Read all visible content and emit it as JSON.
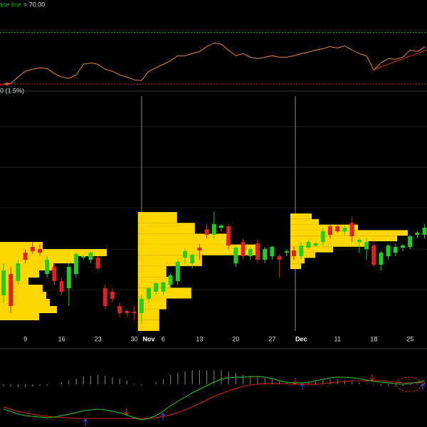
{
  "chart_data": [
    {
      "type": "line",
      "base_line_name": "ase line",
      "base_line": {
        "value": 70,
        "label": "= 70.00"
      },
      "lower_line": 30,
      "ylim": [
        29,
        95
      ],
      "color": "#e8873a",
      "base_color": "#22aa22",
      "lower_color": "#dd2222",
      "values": [
        30,
        30.5,
        35.5,
        40,
        41.5,
        42.6,
        42,
        38.2,
        35.5,
        34.4,
        37.1,
        45.3,
        46.4,
        45.3,
        41.5,
        39.9,
        37.1,
        35.5,
        33.3,
        32.7,
        39.9,
        42.6,
        45.3,
        48.1,
        51.9,
        51.9,
        53.6,
        55.2,
        59,
        61.8,
        60.7,
        56.3,
        51.9,
        53.6,
        50.8,
        49.7,
        50.8,
        51.9,
        50.8,
        50.8,
        51.9,
        53.6,
        54.7,
        56.3,
        57.4,
        59,
        57.9,
        59.6,
        56.3,
        53.6,
        51.9,
        41,
        46.4,
        49.7,
        49.2,
        50.8,
        56.3,
        55.2,
        58.5
      ]
    },
    {
      "type": "candlestick",
      "subtitle": "0 (1.5%)",
      "ylim": [
        0,
        335
      ],
      "up_color": "#22cc22",
      "down_color": "#dd2222",
      "profile_color": "#ffd700",
      "categories": [
        null,
        null,
        null,
        "9",
        null,
        null,
        null,
        null,
        "16",
        null,
        null,
        null,
        null,
        "23",
        null,
        null,
        null,
        null,
        "30",
        null,
        "Nov",
        null,
        "6",
        null,
        null,
        null,
        null,
        "13",
        null,
        null,
        null,
        null,
        "20",
        null,
        null,
        null,
        null,
        "27",
        null,
        null,
        null,
        "Dec",
        null,
        null,
        null,
        null,
        "11",
        null,
        null,
        null,
        null,
        "18",
        null,
        null,
        null,
        null,
        "25",
        null,
        null
      ],
      "open": [
        50,
        80,
        70,
        110,
        118,
        115,
        80,
        90,
        70,
        60,
        80,
        103,
        100,
        103,
        60,
        55,
        35,
        28,
        27,
        25,
        45,
        55,
        55,
        65,
        70,
        103,
        95,
        117,
        143,
        135,
        145,
        147,
        95,
        125,
        105,
        123,
        100,
        105,
        105,
        110,
        113,
        105,
        117,
        120,
        125,
        147,
        147,
        140,
        152,
        125,
        115,
        120,
        93,
        105,
        110,
        117,
        118,
        135,
        135
      ],
      "high": [
        95,
        90,
        100,
        115,
        125,
        122,
        105,
        95,
        75,
        95,
        110,
        107,
        112,
        105,
        65,
        60,
        40,
        30,
        35,
        50,
        62,
        68,
        70,
        80,
        100,
        115,
        108,
        122,
        150,
        167,
        150,
        150,
        120,
        130,
        118,
        128,
        118,
        120,
        108,
        115,
        118,
        125,
        128,
        125,
        145,
        150,
        150,
        148,
        160,
        130,
        130,
        125,
        112,
        122,
        122,
        122,
        135,
        140,
        150
      ],
      "low": [
        40,
        25,
        65,
        95,
        108,
        105,
        75,
        65,
        50,
        35,
        75,
        100,
        95,
        85,
        30,
        40,
        20,
        20,
        15,
        10,
        40,
        50,
        50,
        60,
        65,
        95,
        88,
        100,
        130,
        130,
        140,
        115,
        90,
        100,
        100,
        95,
        95,
        100,
        75,
        105,
        100,
        100,
        115,
        118,
        120,
        130,
        138,
        135,
        125,
        110,
        100,
        90,
        85,
        100,
        105,
        112,
        115,
        130,
        130
      ],
      "close": [
        85,
        35,
        95,
        100,
        112,
        110,
        100,
        70,
        55,
        90,
        108,
        105,
        110,
        88,
        35,
        45,
        25,
        25,
        25,
        45,
        60,
        67,
        68,
        78,
        97,
        112,
        107,
        113,
        135,
        150,
        148,
        120,
        117,
        105,
        115,
        100,
        115,
        118,
        100,
        112,
        105,
        120,
        125,
        123,
        140,
        135,
        140,
        145,
        133,
        128,
        125,
        93,
        110,
        120,
        118,
        120,
        133,
        138,
        145
      ],
      "profiles": [
        {
          "start": 0,
          "low": 15,
          "high": 125,
          "counts": [
            55,
            80,
            70,
            65,
            60,
            40,
            55,
            75,
            110,
            150,
            60
          ]
        },
        {
          "start": 19,
          "low": 0,
          "high": 167,
          "counts": [
            30,
            30,
            40,
            75,
            45,
            40,
            90,
            170,
            130,
            80,
            55
          ]
        },
        {
          "start": 40,
          "low": 87,
          "high": 165,
          "counts": [
            15,
            20,
            35,
            60,
            110,
            150,
            165,
            95,
            40,
            30
          ]
        }
      ]
    },
    {
      "type": "macd",
      "ylim": [
        -60,
        40
      ],
      "macd_color": "#22cc22",
      "signal_color": "#dd2222",
      "hist_color": "#888888",
      "macd": [
        -35,
        -38,
        -42,
        -44,
        -45,
        -46,
        -47,
        -46,
        -44,
        -42,
        -40,
        -37,
        -36,
        -35,
        -36,
        -38,
        -40,
        -43,
        -47,
        -50,
        -48,
        -44,
        -38,
        -30,
        -24,
        -18,
        -12,
        -7,
        -2,
        3,
        7,
        9,
        10,
        10,
        11,
        11,
        10,
        8,
        5,
        3,
        2,
        2,
        3,
        5,
        7,
        9,
        10,
        10,
        9,
        8,
        6,
        4,
        3,
        2,
        1,
        0,
        1,
        3,
        5
      ],
      "signal": [
        -32,
        -35,
        -38,
        -40,
        -42,
        -44,
        -45,
        -46,
        -47,
        -47,
        -48,
        -48,
        -48,
        -48,
        -48,
        -48,
        -48,
        -48,
        -48,
        -48,
        -48,
        -47,
        -45,
        -43,
        -40,
        -36,
        -32,
        -27,
        -22,
        -17,
        -13,
        -9,
        -6,
        -3,
        -1,
        0,
        1,
        1,
        1,
        1,
        0,
        0,
        0,
        0,
        1,
        2,
        3,
        4,
        5,
        5,
        5,
        5,
        5,
        4,
        3,
        2,
        2,
        2,
        3
      ],
      "histogram": [
        -3,
        -3,
        -4,
        -4,
        -3,
        -2,
        -2,
        0,
        3,
        5,
        8,
        11,
        12,
        13,
        12,
        10,
        8,
        5,
        1,
        -2,
        0,
        3,
        7,
        13,
        16,
        18,
        20,
        20,
        20,
        20,
        20,
        18,
        16,
        13,
        12,
        11,
        9,
        7,
        4,
        2,
        2,
        2,
        3,
        5,
        6,
        7,
        7,
        6,
        4,
        3,
        1,
        -1,
        -2,
        -2,
        -2,
        -2,
        -1,
        1,
        2
      ]
    }
  ]
}
